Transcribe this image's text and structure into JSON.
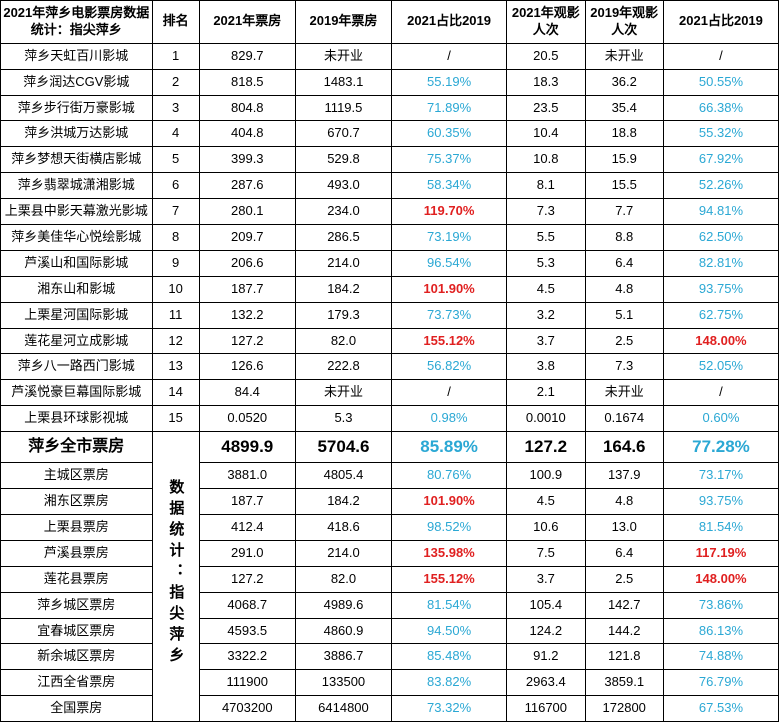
{
  "colors": {
    "blue": "#2ba8d4",
    "red": "#e02020",
    "black": "#000000"
  },
  "header": {
    "title": "2021年萍乡电影票房数据统计：指尖萍乡",
    "rank": "排名",
    "rev21": "2021年票房",
    "rev19": "2019年票房",
    "pct1": "2021占比2019",
    "att21": "2021年观影人次",
    "att19": "2019年观影人次",
    "pct2": "2021占比2019"
  },
  "rows": [
    {
      "name": "萍乡天虹百川影城",
      "rank": "1",
      "rev21": "829.7",
      "rev19": "未开业",
      "pct1": "/",
      "pct1c": "black",
      "att21": "20.5",
      "att19": "未开业",
      "pct2": "/",
      "pct2c": "black"
    },
    {
      "name": "萍乡润达CGV影城",
      "rank": "2",
      "rev21": "818.5",
      "rev19": "1483.1",
      "pct1": "55.19%",
      "pct1c": "blue",
      "att21": "18.3",
      "att19": "36.2",
      "pct2": "50.55%",
      "pct2c": "blue"
    },
    {
      "name": "萍乡步行街万豪影城",
      "rank": "3",
      "rev21": "804.8",
      "rev19": "1119.5",
      "pct1": "71.89%",
      "pct1c": "blue",
      "att21": "23.5",
      "att19": "35.4",
      "pct2": "66.38%",
      "pct2c": "blue"
    },
    {
      "name": "萍乡洪城万达影城",
      "rank": "4",
      "rev21": "404.8",
      "rev19": "670.7",
      "pct1": "60.35%",
      "pct1c": "blue",
      "att21": "10.4",
      "att19": "18.8",
      "pct2": "55.32%",
      "pct2c": "blue"
    },
    {
      "name": "萍乡梦想天街横店影城",
      "rank": "5",
      "rev21": "399.3",
      "rev19": "529.8",
      "pct1": "75.37%",
      "pct1c": "blue",
      "att21": "10.8",
      "att19": "15.9",
      "pct2": "67.92%",
      "pct2c": "blue"
    },
    {
      "name": "萍乡翡翠城潇湘影城",
      "rank": "6",
      "rev21": "287.6",
      "rev19": "493.0",
      "pct1": "58.34%",
      "pct1c": "blue",
      "att21": "8.1",
      "att19": "15.5",
      "pct2": "52.26%",
      "pct2c": "blue"
    },
    {
      "name": "上栗县中影天幕激光影城",
      "rank": "7",
      "rev21": "280.1",
      "rev19": "234.0",
      "pct1": "119.70%",
      "pct1c": "red",
      "att21": "7.3",
      "att19": "7.7",
      "pct2": "94.81%",
      "pct2c": "blue"
    },
    {
      "name": "萍乡美佳华心悦绘影城",
      "rank": "8",
      "rev21": "209.7",
      "rev19": "286.5",
      "pct1": "73.19%",
      "pct1c": "blue",
      "att21": "5.5",
      "att19": "8.8",
      "pct2": "62.50%",
      "pct2c": "blue"
    },
    {
      "name": "芦溪山和国际影城",
      "rank": "9",
      "rev21": "206.6",
      "rev19": "214.0",
      "pct1": "96.54%",
      "pct1c": "blue",
      "att21": "5.3",
      "att19": "6.4",
      "pct2": "82.81%",
      "pct2c": "blue"
    },
    {
      "name": "湘东山和影城",
      "rank": "10",
      "rev21": "187.7",
      "rev19": "184.2",
      "pct1": "101.90%",
      "pct1c": "red",
      "att21": "4.5",
      "att19": "4.8",
      "pct2": "93.75%",
      "pct2c": "blue"
    },
    {
      "name": "上栗星河国际影城",
      "rank": "11",
      "rev21": "132.2",
      "rev19": "179.3",
      "pct1": "73.73%",
      "pct1c": "blue",
      "att21": "3.2",
      "att19": "5.1",
      "pct2": "62.75%",
      "pct2c": "blue"
    },
    {
      "name": "莲花星河立成影城",
      "rank": "12",
      "rev21": "127.2",
      "rev19": "82.0",
      "pct1": "155.12%",
      "pct1c": "red",
      "att21": "3.7",
      "att19": "2.5",
      "pct2": "148.00%",
      "pct2c": "red"
    },
    {
      "name": "萍乡八一路西门影城",
      "rank": "13",
      "rev21": "126.6",
      "rev19": "222.8",
      "pct1": "56.82%",
      "pct1c": "blue",
      "att21": "3.8",
      "att19": "7.3",
      "pct2": "52.05%",
      "pct2c": "blue"
    },
    {
      "name": "芦溪悦豪巨幕国际影城",
      "rank": "14",
      "rev21": "84.4",
      "rev19": "未开业",
      "pct1": "/",
      "pct1c": "black",
      "att21": "2.1",
      "att19": "未开业",
      "pct2": "/",
      "pct2c": "black"
    },
    {
      "name": "上栗县环球影视城",
      "rank": "15",
      "rev21": "0.0520",
      "rev19": "5.3",
      "pct1": "0.98%",
      "pct1c": "blue",
      "att21": "0.0010",
      "att19": "0.1674",
      "pct2": "0.60%",
      "pct2c": "blue"
    }
  ],
  "total": {
    "name": "萍乡全市票房",
    "rev21": "4899.9",
    "rev19": "5704.6",
    "pct1": "85.89%",
    "pct1c": "blue",
    "att21": "127.2",
    "att19": "164.6",
    "pct2": "77.28%",
    "pct2c": "blue"
  },
  "vert_label": "数据统计：指尖萍乡",
  "summary": [
    {
      "name": "主城区票房",
      "rev21": "3881.0",
      "rev19": "4805.4",
      "pct1": "80.76%",
      "pct1c": "blue",
      "att21": "100.9",
      "att19": "137.9",
      "pct2": "73.17%",
      "pct2c": "blue"
    },
    {
      "name": "湘东区票房",
      "rev21": "187.7",
      "rev19": "184.2",
      "pct1": "101.90%",
      "pct1c": "red",
      "att21": "4.5",
      "att19": "4.8",
      "pct2": "93.75%",
      "pct2c": "blue"
    },
    {
      "name": "上栗县票房",
      "rev21": "412.4",
      "rev19": "418.6",
      "pct1": "98.52%",
      "pct1c": "blue",
      "att21": "10.6",
      "att19": "13.0",
      "pct2": "81.54%",
      "pct2c": "blue"
    },
    {
      "name": "芦溪县票房",
      "rev21": "291.0",
      "rev19": "214.0",
      "pct1": "135.98%",
      "pct1c": "red",
      "att21": "7.5",
      "att19": "6.4",
      "pct2": "117.19%",
      "pct2c": "red"
    },
    {
      "name": "莲花县票房",
      "rev21": "127.2",
      "rev19": "82.0",
      "pct1": "155.12%",
      "pct1c": "red",
      "att21": "3.7",
      "att19": "2.5",
      "pct2": "148.00%",
      "pct2c": "red"
    },
    {
      "name": "萍乡城区票房",
      "rev21": "4068.7",
      "rev19": "4989.6",
      "pct1": "81.54%",
      "pct1c": "blue",
      "att21": "105.4",
      "att19": "142.7",
      "pct2": "73.86%",
      "pct2c": "blue"
    },
    {
      "name": "宜春城区票房",
      "rev21": "4593.5",
      "rev19": "4860.9",
      "pct1": "94.50%",
      "pct1c": "blue",
      "att21": "124.2",
      "att19": "144.2",
      "pct2": "86.13%",
      "pct2c": "blue"
    },
    {
      "name": "新余城区票房",
      "rev21": "3322.2",
      "rev19": "3886.7",
      "pct1": "85.48%",
      "pct1c": "blue",
      "att21": "91.2",
      "att19": "121.8",
      "pct2": "74.88%",
      "pct2c": "blue"
    },
    {
      "name": "江西全省票房",
      "rev21": "111900",
      "rev19": "133500",
      "pct1": "83.82%",
      "pct1c": "blue",
      "att21": "2963.4",
      "att19": "3859.1",
      "pct2": "76.79%",
      "pct2c": "blue"
    },
    {
      "name": "全国票房",
      "rev21": "4703200",
      "rev19": "6414800",
      "pct1": "73.32%",
      "pct1c": "blue",
      "att21": "116700",
      "att19": "172800",
      "pct2": "67.53%",
      "pct2c": "blue"
    }
  ]
}
